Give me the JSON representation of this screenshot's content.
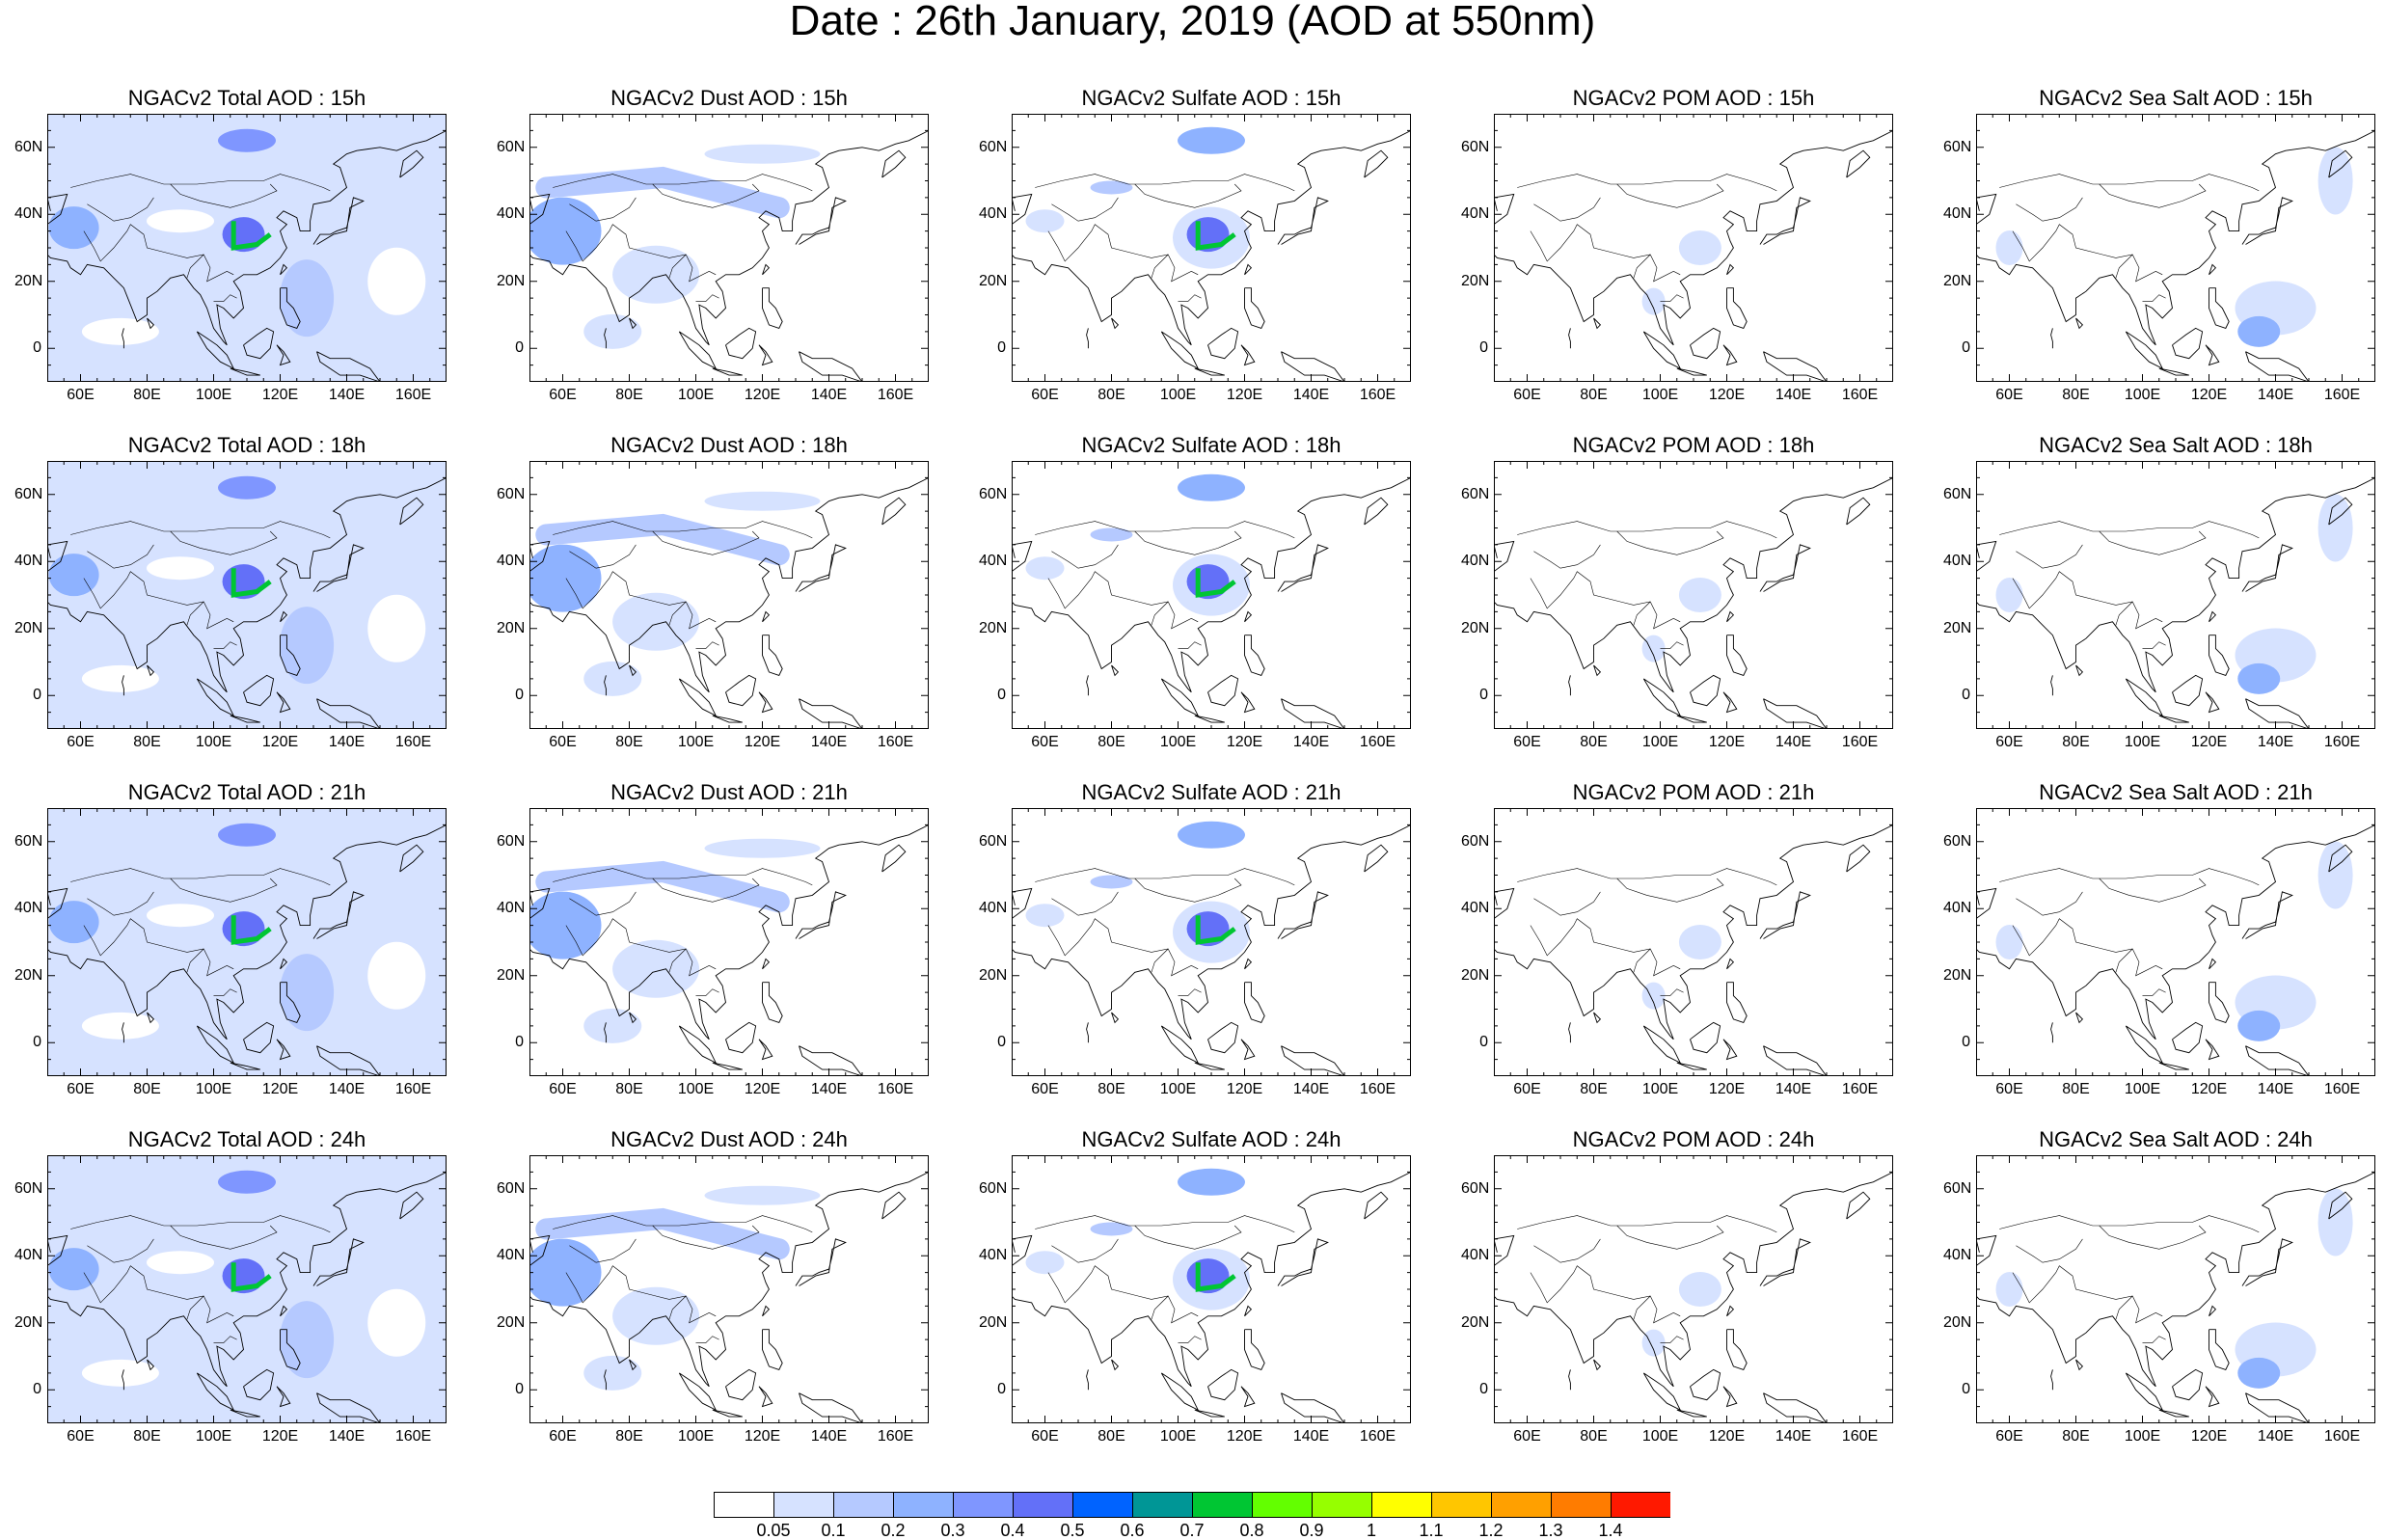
{
  "figure": {
    "title": "Date : 26th January, 2019 (AOD at 550nm)"
  },
  "panel_titles": [
    [
      "NGACv2 Total AOD : 15h",
      "NGACv2 Dust AOD : 15h",
      "NGACv2 Sulfate AOD : 15h",
      "NGACv2 POM AOD : 15h",
      "NGACv2 Sea Salt AOD : 15h"
    ],
    [
      "NGACv2 Total AOD : 18h",
      "NGACv2 Dust AOD : 18h",
      "NGACv2 Sulfate AOD : 18h",
      "NGACv2 POM AOD : 18h",
      "NGACv2 Sea Salt AOD : 18h"
    ],
    [
      "NGACv2 Total AOD : 21h",
      "NGACv2 Dust AOD : 21h",
      "NGACv2 Sulfate AOD : 21h",
      "NGACv2 POM AOD : 21h",
      "NGACv2 Sea Salt AOD : 21h"
    ],
    [
      "NGACv2 Total AOD : 24h",
      "NGACv2 Dust AOD : 24h",
      "NGACv2 Sulfate AOD : 24h",
      "NGACv2 POM AOD : 24h",
      "NGACv2 Sea Salt  AOD : 24h"
    ]
  ],
  "map_axes": {
    "lon_ticks": [
      "60E",
      "80E",
      "100E",
      "120E",
      "140E",
      "160E"
    ],
    "lat_ticks": [
      "60N",
      "40N",
      "20N",
      "0"
    ],
    "lon_range": [
      50,
      170
    ],
    "lat_range": [
      -10,
      70
    ]
  },
  "colorbar": {
    "labels": [
      "0.05",
      "0.1",
      "0.2",
      "0.3",
      "0.4",
      "0.5",
      "0.6",
      "0.7",
      "0.8",
      "0.9",
      "1",
      "1.1",
      "1.2",
      "1.3",
      "1.4"
    ],
    "colors": [
      "#ffffff",
      "#d6e2ff",
      "#b5c9ff",
      "#8eb2ff",
      "#7f96ff",
      "#6370f8",
      "#0063ff",
      "#009696",
      "#00c633",
      "#63ff00",
      "#96ff00",
      "#ffff00",
      "#ffc600",
      "#ffa000",
      "#ff7c00",
      "#ff1900"
    ]
  },
  "colors": {
    "land_outline": "#000000",
    "low_aod": "#d6e2ff",
    "mid_aod": "#8eb2ff",
    "high_aod": "#00c633"
  }
}
